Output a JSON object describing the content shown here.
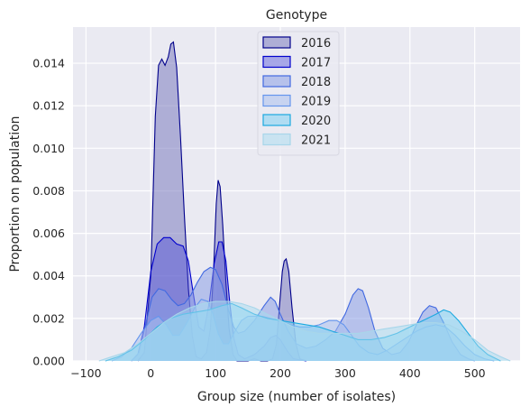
{
  "chart_data": {
    "type": "area",
    "title": "Genotype",
    "xlabel": "Group size (number of isolates)",
    "ylabel": "Proportion on population",
    "xlim": [
      -120,
      570
    ],
    "ylim": [
      0,
      0.0157
    ],
    "x_ticks": [
      -100,
      0,
      100,
      200,
      300,
      400,
      500
    ],
    "x_tick_labels": [
      "−100",
      "0",
      "100",
      "200",
      "300",
      "400",
      "500"
    ],
    "y_ticks": [
      0,
      0.002,
      0.004,
      0.006,
      0.008,
      0.01,
      0.012,
      0.014
    ],
    "y_tick_labels": [
      "0.000",
      "0.002",
      "0.004",
      "0.006",
      "0.008",
      "0.010",
      "0.012",
      "0.014"
    ],
    "grid": true,
    "legend_position": "top-center",
    "series": [
      {
        "name": "2016",
        "fill": "#7c7cc0",
        "stroke": "#00008b",
        "fill_opacity": 0.55,
        "points": [
          [
            -20,
            0
          ],
          [
            -10,
            0.0004
          ],
          [
            0,
            0.004
          ],
          [
            7,
            0.0115
          ],
          [
            12,
            0.0139
          ],
          [
            17,
            0.0142
          ],
          [
            22,
            0.0139
          ],
          [
            27,
            0.0143
          ],
          [
            31,
            0.0149
          ],
          [
            35,
            0.015
          ],
          [
            40,
            0.0138
          ],
          [
            46,
            0.0105
          ],
          [
            52,
            0.0068
          ],
          [
            58,
            0.0034
          ],
          [
            64,
            0.0012
          ],
          [
            70,
            0.0002
          ],
          [
            78,
            0.0001
          ],
          [
            86,
            0.0004
          ],
          [
            92,
            0.0015
          ],
          [
            97,
            0.0043
          ],
          [
            101,
            0.0074
          ],
          [
            104,
            0.0085
          ],
          [
            107,
            0.0082
          ],
          [
            111,
            0.0064
          ],
          [
            116,
            0.0037
          ],
          [
            121,
            0.0015
          ],
          [
            127,
            0.0003
          ],
          [
            133,
            0
          ],
          [
            140,
            0
          ],
          [
            150,
            0
          ],
          [
            160,
            0.0001
          ],
          [
            170,
            0
          ],
          [
            180,
            0
          ],
          [
            188,
            0.0001
          ],
          [
            194,
            0.0008
          ],
          [
            199,
            0.0027
          ],
          [
            203,
            0.0042
          ],
          [
            206,
            0.0047
          ],
          [
            209,
            0.0048
          ],
          [
            213,
            0.0042
          ],
          [
            218,
            0.0025
          ],
          [
            224,
            0.0008
          ],
          [
            230,
            0.0001
          ],
          [
            240,
            0
          ]
        ]
      },
      {
        "name": "2017",
        "fill": "#4040d8",
        "stroke": "#0000cd",
        "fill_opacity": 0.4,
        "points": [
          [
            -30,
            0
          ],
          [
            -20,
            0.0003
          ],
          [
            -10,
            0.0016
          ],
          [
            0,
            0.0042
          ],
          [
            10,
            0.0055
          ],
          [
            20,
            0.0058
          ],
          [
            30,
            0.0058
          ],
          [
            40,
            0.0055
          ],
          [
            50,
            0.0054
          ],
          [
            58,
            0.0047
          ],
          [
            66,
            0.0031
          ],
          [
            74,
            0.0016
          ],
          [
            82,
            0.0014
          ],
          [
            90,
            0.0027
          ],
          [
            98,
            0.0046
          ],
          [
            105,
            0.0056
          ],
          [
            110,
            0.0056
          ],
          [
            116,
            0.0047
          ],
          [
            122,
            0.0027
          ],
          [
            128,
            0.0011
          ],
          [
            135,
            0.0003
          ],
          [
            145,
            0.0001
          ],
          [
            160,
            0.0003
          ],
          [
            175,
            0.0007
          ],
          [
            185,
            0.0011
          ],
          [
            193,
            0.0012
          ],
          [
            200,
            0.001
          ],
          [
            210,
            0.0005
          ],
          [
            220,
            0.0001
          ],
          [
            240,
            0
          ]
        ]
      },
      {
        "name": "2018",
        "fill": "#8a9ee6",
        "stroke": "#4169e1",
        "fill_opacity": 0.55,
        "points": [
          [
            -30,
            0
          ],
          [
            -18,
            0.0004
          ],
          [
            -8,
            0.0017
          ],
          [
            2,
            0.003
          ],
          [
            12,
            0.0034
          ],
          [
            22,
            0.0033
          ],
          [
            32,
            0.0029
          ],
          [
            42,
            0.0026
          ],
          [
            52,
            0.0027
          ],
          [
            62,
            0.0031
          ],
          [
            72,
            0.0037
          ],
          [
            82,
            0.0042
          ],
          [
            92,
            0.0044
          ],
          [
            100,
            0.0043
          ],
          [
            110,
            0.0036
          ],
          [
            120,
            0.0024
          ],
          [
            128,
            0.0016
          ],
          [
            135,
            0.0013
          ],
          [
            145,
            0.0014
          ],
          [
            160,
            0.0019
          ],
          [
            175,
            0.0026
          ],
          [
            185,
            0.003
          ],
          [
            192,
            0.0028
          ],
          [
            200,
            0.0022
          ],
          [
            212,
            0.0014
          ],
          [
            225,
            0.0008
          ],
          [
            240,
            0.0006
          ],
          [
            255,
            0.0007
          ],
          [
            270,
            0.001
          ],
          [
            285,
            0.0014
          ],
          [
            300,
            0.0022
          ],
          [
            312,
            0.0031
          ],
          [
            320,
            0.0034
          ],
          [
            327,
            0.0033
          ],
          [
            336,
            0.0025
          ],
          [
            346,
            0.0014
          ],
          [
            358,
            0.0006
          ],
          [
            372,
            0.0003
          ],
          [
            385,
            0.0004
          ],
          [
            398,
            0.0009
          ],
          [
            410,
            0.0017
          ],
          [
            420,
            0.0023
          ],
          [
            430,
            0.0026
          ],
          [
            440,
            0.0025
          ],
          [
            452,
            0.0018
          ],
          [
            465,
            0.0009
          ],
          [
            478,
            0.0003
          ],
          [
            490,
            0.0001
          ],
          [
            500,
            0
          ]
        ]
      },
      {
        "name": "2019",
        "fill": "#a9bfee",
        "stroke": "#6495ed",
        "fill_opacity": 0.55,
        "points": [
          [
            -60,
            0
          ],
          [
            -45,
            0.0002
          ],
          [
            -30,
            0.0006
          ],
          [
            -15,
            0.0013
          ],
          [
            0,
            0.0019
          ],
          [
            12,
            0.0021
          ],
          [
            24,
            0.0017
          ],
          [
            34,
            0.0012
          ],
          [
            44,
            0.0012
          ],
          [
            56,
            0.0018
          ],
          [
            68,
            0.0025
          ],
          [
            78,
            0.0029
          ],
          [
            88,
            0.0028
          ],
          [
            96,
            0.0022
          ],
          [
            104,
            0.0013
          ],
          [
            112,
            0.0008
          ],
          [
            120,
            0.0008
          ],
          [
            130,
            0.0014
          ],
          [
            140,
            0.0019
          ],
          [
            150,
            0.0021
          ],
          [
            160,
            0.0021
          ],
          [
            172,
            0.0021
          ],
          [
            185,
            0.002
          ],
          [
            200,
            0.0019
          ],
          [
            215,
            0.0017
          ],
          [
            230,
            0.0016
          ],
          [
            245,
            0.0016
          ],
          [
            260,
            0.0017
          ],
          [
            275,
            0.0019
          ],
          [
            287,
            0.0019
          ],
          [
            298,
            0.0017
          ],
          [
            310,
            0.0012
          ],
          [
            322,
            0.0007
          ],
          [
            336,
            0.0004
          ],
          [
            350,
            0.0003
          ],
          [
            365,
            0.0005
          ],
          [
            380,
            0.0008
          ],
          [
            395,
            0.0011
          ],
          [
            410,
            0.0014
          ],
          [
            425,
            0.0016
          ],
          [
            440,
            0.0017
          ],
          [
            455,
            0.0016
          ],
          [
            470,
            0.0012
          ],
          [
            485,
            0.0007
          ],
          [
            500,
            0.0003
          ],
          [
            515,
            0.0001
          ],
          [
            530,
            0
          ]
        ]
      },
      {
        "name": "2020",
        "fill": "#7fd0f2",
        "stroke": "#1ca9e0",
        "fill_opacity": 0.55,
        "points": [
          [
            -70,
            0
          ],
          [
            -50,
            0.0002
          ],
          [
            -30,
            0.0005
          ],
          [
            -10,
            0.001
          ],
          [
            10,
            0.0016
          ],
          [
            30,
            0.002
          ],
          [
            50,
            0.0022
          ],
          [
            70,
            0.0023
          ],
          [
            90,
            0.0024
          ],
          [
            110,
            0.0026
          ],
          [
            125,
            0.0027
          ],
          [
            140,
            0.0025
          ],
          [
            160,
            0.0022
          ],
          [
            180,
            0.002
          ],
          [
            200,
            0.0019
          ],
          [
            220,
            0.0018
          ],
          [
            240,
            0.0017
          ],
          [
            260,
            0.0016
          ],
          [
            280,
            0.0014
          ],
          [
            300,
            0.0012
          ],
          [
            320,
            0.001
          ],
          [
            340,
            0.001
          ],
          [
            360,
            0.0011
          ],
          [
            380,
            0.0013
          ],
          [
            400,
            0.0016
          ],
          [
            420,
            0.0019
          ],
          [
            440,
            0.0022
          ],
          [
            452,
            0.0024
          ],
          [
            462,
            0.0023
          ],
          [
            475,
            0.0019
          ],
          [
            490,
            0.0013
          ],
          [
            505,
            0.0007
          ],
          [
            520,
            0.0003
          ],
          [
            540,
            0
          ]
        ]
      },
      {
        "name": "2021",
        "fill": "#a8dcf0",
        "stroke": "#a8d6ea",
        "fill_opacity": 0.5,
        "points": [
          [
            -80,
            0
          ],
          [
            -60,
            0.0002
          ],
          [
            -40,
            0.0004
          ],
          [
            -20,
            0.0008
          ],
          [
            0,
            0.0013
          ],
          [
            20,
            0.0018
          ],
          [
            40,
            0.0022
          ],
          [
            60,
            0.0025
          ],
          [
            80,
            0.0027
          ],
          [
            100,
            0.0028
          ],
          [
            120,
            0.0028
          ],
          [
            140,
            0.0027
          ],
          [
            160,
            0.0025
          ],
          [
            180,
            0.0022
          ],
          [
            200,
            0.0019
          ],
          [
            220,
            0.0016
          ],
          [
            240,
            0.0014
          ],
          [
            260,
            0.0013
          ],
          [
            280,
            0.0013
          ],
          [
            300,
            0.0013
          ],
          [
            320,
            0.0013
          ],
          [
            340,
            0.0014
          ],
          [
            360,
            0.0015
          ],
          [
            380,
            0.0016
          ],
          [
            400,
            0.0017
          ],
          [
            420,
            0.0018
          ],
          [
            440,
            0.0018
          ],
          [
            460,
            0.0017
          ],
          [
            480,
            0.0014
          ],
          [
            500,
            0.001
          ],
          [
            520,
            0.0005
          ],
          [
            540,
            0.0002
          ],
          [
            555,
            0
          ]
        ]
      }
    ]
  }
}
